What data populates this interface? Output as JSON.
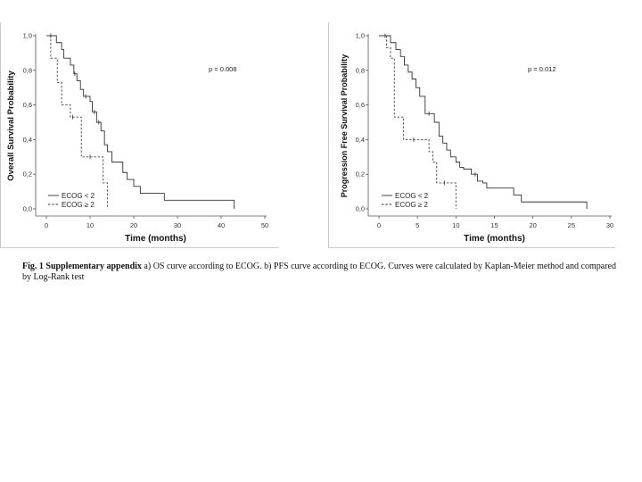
{
  "caption": {
    "bold": "Fig. 1 Supplementary appendix",
    "text": " a) OS curve according to ECOG. b) PFS curve according to ECOG. Curves were calculated by Kaplan-Meier method and compared by Log-Rank test"
  },
  "chart_data": [
    {
      "type": "line",
      "title": "",
      "xlabel": "Time (months)",
      "ylabel": "Overall Survival Probability",
      "xlim": [
        0,
        50
      ],
      "ylim": [
        0,
        1
      ],
      "xticks": [
        "0",
        "10",
        "20",
        "30",
        "40",
        "50"
      ],
      "yticks": [
        "0,0",
        "0,2",
        "0,4",
        "0,6",
        "0,8",
        "1,0"
      ],
      "annotation": "p  = 0.008",
      "legend_position": "bottom-left",
      "grid": false,
      "series": [
        {
          "name": "ECOG < 2",
          "style": "solid",
          "x": [
            0,
            2.3,
            3.5,
            4.0,
            5.5,
            6.3,
            7.0,
            7.8,
            8.5,
            10.0,
            10.5,
            11.5,
            12.5,
            13.3,
            14.0,
            15.0,
            17.5,
            18.5,
            20.0,
            21.5,
            27.0,
            43.0
          ],
          "y": [
            1.0,
            0.96,
            0.92,
            0.87,
            0.83,
            0.78,
            0.74,
            0.69,
            0.65,
            0.62,
            0.56,
            0.5,
            0.45,
            0.37,
            0.33,
            0.27,
            0.21,
            0.17,
            0.13,
            0.09,
            0.05,
            0.0
          ]
        },
        {
          "name": "ECOG ≥ 2",
          "style": "dashed",
          "x": [
            0,
            1.0,
            2.5,
            3.5,
            5.5,
            8.0,
            13.0,
            14.0
          ],
          "y": [
            1.0,
            0.87,
            0.73,
            0.6,
            0.53,
            0.3,
            0.15,
            0.0
          ]
        }
      ],
      "censor_marks": [
        {
          "series": 1,
          "x": 1.0,
          "y": 1.0
        },
        {
          "series": 0,
          "x": 6.5,
          "y": 0.78
        },
        {
          "series": 0,
          "x": 9.0,
          "y": 0.65
        },
        {
          "series": 0,
          "x": 11.0,
          "y": 0.56
        },
        {
          "series": 0,
          "x": 12.0,
          "y": 0.5
        },
        {
          "series": 1,
          "x": 6.0,
          "y": 0.53
        },
        {
          "series": 1,
          "x": 10.0,
          "y": 0.3
        }
      ]
    },
    {
      "type": "line",
      "title": "",
      "xlabel": "Time (months)",
      "ylabel": "Progression Free Survival Probability",
      "xlim": [
        0,
        30
      ],
      "ylim": [
        0,
        1
      ],
      "xticks": [
        "0",
        "5",
        "10",
        "15",
        "20",
        "25",
        "30"
      ],
      "yticks": [
        "0,0",
        "0,2",
        "0,4",
        "0,6",
        "0,8",
        "1,0"
      ],
      "annotation": "p  = 0.012",
      "legend_position": "bottom-left",
      "grid": false,
      "series": [
        {
          "name": "ECOG < 2",
          "style": "solid",
          "x": [
            0,
            1.5,
            2.2,
            2.8,
            3.3,
            3.8,
            4.3,
            4.8,
            5.3,
            6.0,
            7.2,
            7.8,
            8.3,
            8.8,
            9.3,
            10.0,
            10.5,
            11.0,
            12.0,
            12.8,
            13.5,
            14.0,
            17.5,
            18.5,
            27.0
          ],
          "y": [
            1.0,
            0.96,
            0.92,
            0.88,
            0.83,
            0.79,
            0.75,
            0.7,
            0.65,
            0.55,
            0.5,
            0.42,
            0.38,
            0.34,
            0.3,
            0.27,
            0.24,
            0.23,
            0.2,
            0.16,
            0.15,
            0.12,
            0.08,
            0.04,
            0.0
          ]
        },
        {
          "name": "ECOG ≥ 2",
          "style": "dashed",
          "x": [
            0,
            1.0,
            1.5,
            2.0,
            3.2,
            6.5,
            7.0,
            7.5,
            10.0
          ],
          "y": [
            1.0,
            0.93,
            0.87,
            0.53,
            0.4,
            0.33,
            0.27,
            0.15,
            0.0
          ]
        }
      ],
      "censor_marks": [
        {
          "series": 1,
          "x": 0.8,
          "y": 1.0
        },
        {
          "series": 0,
          "x": 6.5,
          "y": 0.55
        },
        {
          "series": 0,
          "x": 12.5,
          "y": 0.2
        },
        {
          "series": 1,
          "x": 4.5,
          "y": 0.4
        },
        {
          "series": 1,
          "x": 8.5,
          "y": 0.15
        }
      ]
    }
  ]
}
